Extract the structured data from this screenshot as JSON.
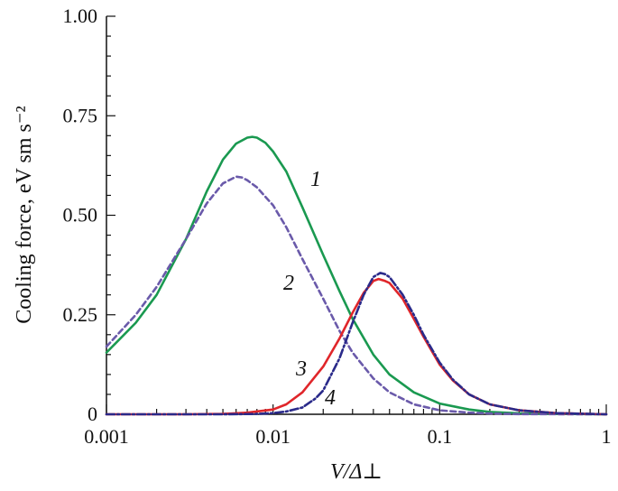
{
  "chart_data": {
    "type": "line",
    "title": "",
    "xlabel": "V/Δ⊥",
    "ylabel": "Cooling force, eV sm s⁻²",
    "xscale": "log",
    "xlim": [
      0.001,
      1
    ],
    "ylim": [
      0,
      1
    ],
    "x_ticks": [
      "0.001",
      "0.01",
      "0.1",
      "1"
    ],
    "y_ticks": [
      "0",
      "0.25",
      "0.50",
      "0.75",
      "1.00"
    ],
    "grid": false,
    "legend": "none",
    "series": [
      {
        "label": "1",
        "color": "#1a9950",
        "dash": "solid",
        "points": [
          [
            0.001,
            0.155
          ],
          [
            0.0015,
            0.23
          ],
          [
            0.002,
            0.3
          ],
          [
            0.003,
            0.44
          ],
          [
            0.004,
            0.56
          ],
          [
            0.005,
            0.64
          ],
          [
            0.006,
            0.68
          ],
          [
            0.007,
            0.695
          ],
          [
            0.0075,
            0.697
          ],
          [
            0.008,
            0.695
          ],
          [
            0.009,
            0.682
          ],
          [
            0.01,
            0.66
          ],
          [
            0.012,
            0.61
          ],
          [
            0.015,
            0.52
          ],
          [
            0.02,
            0.4
          ],
          [
            0.025,
            0.31
          ],
          [
            0.03,
            0.24
          ],
          [
            0.04,
            0.15
          ],
          [
            0.05,
            0.1
          ],
          [
            0.07,
            0.055
          ],
          [
            0.1,
            0.027
          ],
          [
            0.15,
            0.012
          ],
          [
            0.2,
            0.006
          ],
          [
            0.3,
            0.0025
          ],
          [
            0.5,
            0.001
          ],
          [
            1,
            0.0
          ]
        ]
      },
      {
        "label": "2",
        "color": "#6a5aaa",
        "dash": "dashed",
        "points": [
          [
            0.001,
            0.17
          ],
          [
            0.0015,
            0.25
          ],
          [
            0.002,
            0.32
          ],
          [
            0.003,
            0.44
          ],
          [
            0.004,
            0.53
          ],
          [
            0.005,
            0.58
          ],
          [
            0.006,
            0.597
          ],
          [
            0.0065,
            0.595
          ],
          [
            0.007,
            0.588
          ],
          [
            0.008,
            0.57
          ],
          [
            0.01,
            0.525
          ],
          [
            0.012,
            0.47
          ],
          [
            0.015,
            0.39
          ],
          [
            0.02,
            0.29
          ],
          [
            0.025,
            0.21
          ],
          [
            0.03,
            0.155
          ],
          [
            0.04,
            0.09
          ],
          [
            0.05,
            0.055
          ],
          [
            0.07,
            0.025
          ],
          [
            0.1,
            0.01
          ],
          [
            0.15,
            0.004
          ],
          [
            0.2,
            0.002
          ],
          [
            0.3,
            0.0005
          ],
          [
            1,
            0.0
          ]
        ]
      },
      {
        "label": "3",
        "color": "#e0262a",
        "dash": "solid",
        "points": [
          [
            0.001,
            0.0
          ],
          [
            0.003,
            0.0
          ],
          [
            0.005,
            0.001
          ],
          [
            0.007,
            0.004
          ],
          [
            0.01,
            0.012
          ],
          [
            0.012,
            0.025
          ],
          [
            0.015,
            0.055
          ],
          [
            0.02,
            0.12
          ],
          [
            0.025,
            0.19
          ],
          [
            0.03,
            0.255
          ],
          [
            0.035,
            0.305
          ],
          [
            0.04,
            0.335
          ],
          [
            0.043,
            0.34
          ],
          [
            0.047,
            0.335
          ],
          [
            0.05,
            0.33
          ],
          [
            0.06,
            0.29
          ],
          [
            0.07,
            0.24
          ],
          [
            0.08,
            0.195
          ],
          [
            0.1,
            0.125
          ],
          [
            0.12,
            0.085
          ],
          [
            0.15,
            0.05
          ],
          [
            0.2,
            0.025
          ],
          [
            0.3,
            0.01
          ],
          [
            0.5,
            0.003
          ],
          [
            1,
            0.0
          ]
        ]
      },
      {
        "label": "4",
        "color": "#2a2a8a",
        "dash": "dashdot",
        "points": [
          [
            0.001,
            0.0
          ],
          [
            0.005,
            0.0
          ],
          [
            0.008,
            0.001
          ],
          [
            0.01,
            0.003
          ],
          [
            0.012,
            0.007
          ],
          [
            0.015,
            0.017
          ],
          [
            0.018,
            0.04
          ],
          [
            0.02,
            0.06
          ],
          [
            0.025,
            0.14
          ],
          [
            0.03,
            0.23
          ],
          [
            0.035,
            0.3
          ],
          [
            0.04,
            0.345
          ],
          [
            0.044,
            0.355
          ],
          [
            0.047,
            0.352
          ],
          [
            0.05,
            0.345
          ],
          [
            0.06,
            0.3
          ],
          [
            0.07,
            0.25
          ],
          [
            0.08,
            0.2
          ],
          [
            0.1,
            0.13
          ],
          [
            0.12,
            0.087
          ],
          [
            0.15,
            0.05
          ],
          [
            0.2,
            0.025
          ],
          [
            0.3,
            0.01
          ],
          [
            0.5,
            0.003
          ],
          [
            1,
            0.0
          ]
        ]
      }
    ]
  }
}
